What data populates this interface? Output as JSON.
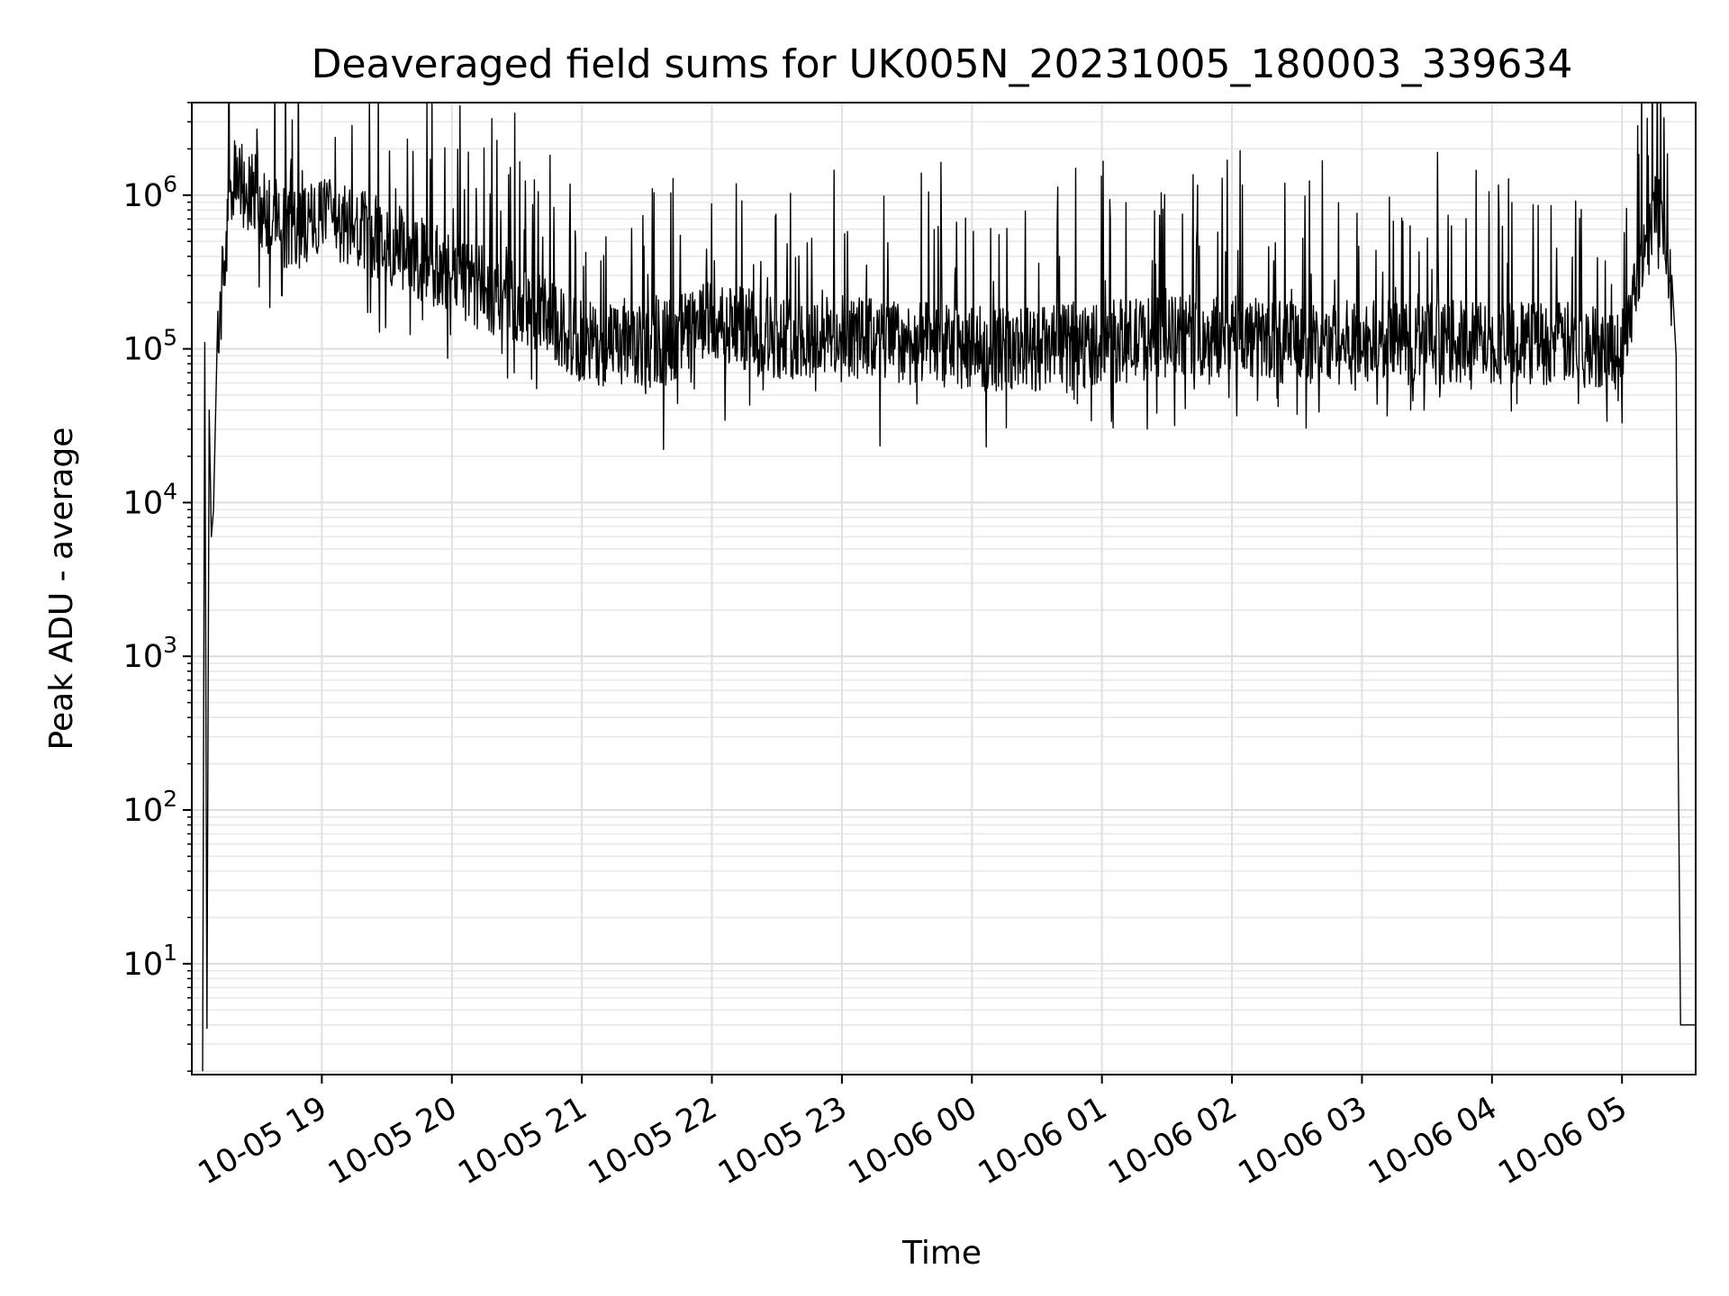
{
  "chart_data": {
    "type": "line",
    "title": "Deaveraged field sums for UK005N_20231005_180003_339634",
    "xlabel": "Time",
    "ylabel": "Peak ADU - average",
    "y_scale": "log",
    "ylim": [
      1.9,
      4000000
    ],
    "xlim": [
      "10-05 18:00",
      "10-06 05:34"
    ],
    "grid": "major and minor, light gray",
    "line_color": "#000000",
    "x_ticks": [
      "10-05 19",
      "10-05 20",
      "10-05 21",
      "10-05 22",
      "10-05 23",
      "10-06 00",
      "10-06 01",
      "10-06 02",
      "10-06 03",
      "10-06 04",
      "10-06 05"
    ],
    "y_ticks": [
      {
        "value": 10,
        "base": "10",
        "exp": "1"
      },
      {
        "value": 100,
        "base": "10",
        "exp": "2"
      },
      {
        "value": 1000,
        "base": "10",
        "exp": "3"
      },
      {
        "value": 10000,
        "base": "10",
        "exp": "4"
      },
      {
        "value": 100000,
        "base": "10",
        "exp": "5"
      },
      {
        "value": 1000000,
        "base": "10",
        "exp": "6"
      }
    ],
    "series": [
      {
        "x": [
          "10-05 18:05",
          "10-05 18:06",
          "10-05 18:07",
          "10-05 18:08",
          "10-05 18:09",
          "10-05 18:10",
          "10-05 18:12",
          "10-05 18:15",
          "10-05 18:20",
          "10-05 18:30",
          "10-05 18:45",
          "10-05 19:00",
          "10-05 19:30",
          "10-05 20:00",
          "10-05 20:30",
          "10-05 21:00",
          "10-05 21:30",
          "10-05 22:00",
          "10-05 22:30",
          "10-05 23:00",
          "10-05 23:30",
          "10-06 00:00",
          "10-06 00:30",
          "10-06 01:00",
          "10-06 01:30",
          "10-06 02:00",
          "10-06 02:30",
          "10-06 03:00",
          "10-06 03:30",
          "10-06 04:00",
          "10-06 04:30",
          "10-06 05:00",
          "10-06 05:10",
          "10-06 05:15",
          "10-06 05:20",
          "10-06 05:23",
          "10-06 05:25",
          "10-06 05:26",
          "10-06 05:27",
          "10-06 05:34"
        ],
        "y": [
          2,
          110000,
          3.8,
          40000,
          6000,
          9000,
          100000,
          400000,
          1300000,
          900000,
          600000,
          700000,
          500000,
          300000,
          200000,
          110000,
          100000,
          150000,
          120000,
          120000,
          110000,
          100000,
          100000,
          110000,
          120000,
          120000,
          110000,
          110000,
          110000,
          110000,
          110000,
          100000,
          500000,
          900000,
          600000,
          200000,
          90000,
          200,
          4,
          4
        ]
      }
    ]
  }
}
